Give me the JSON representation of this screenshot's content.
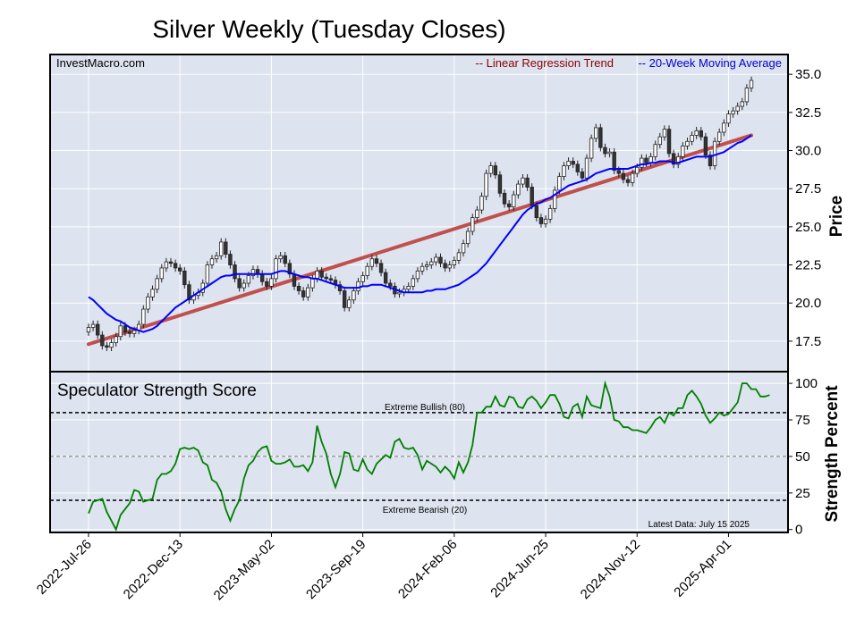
{
  "chart_data": [
    {
      "type": "candlestick",
      "title": "Silver Weekly (Tuesday Closes)",
      "source": "InvestMacro.com",
      "ylabel": "Price",
      "ylim": [
        15.5,
        36.3
      ],
      "yticks": [
        17.5,
        20.0,
        22.5,
        25.0,
        27.5,
        30.0,
        32.5,
        35.0
      ],
      "x_tick_labels": [
        "2022-Jul-26",
        "2022-Dec-13",
        "2023-May-02",
        "2023-Sep-19",
        "2024-Feb-06",
        "2024-Jun-25",
        "2024-Nov-12",
        "2025-Apr-01"
      ],
      "x_tick_positions": [
        0,
        20,
        40,
        60,
        80,
        100,
        120,
        140
      ],
      "legend": [
        "-- Linear Regression Trend",
        "-- 20-Week Moving Average"
      ],
      "legend_colors": [
        "#8b0000",
        "#0000cc"
      ],
      "trend_line": {
        "start": 17.3,
        "end": 31.0
      },
      "colors": {
        "trend": "#c0504d",
        "ma": "#0000ff",
        "candle_up": "#ffffff",
        "candle_down": "#333333",
        "panel_bg": "#dde3ef"
      },
      "closes": [
        18.4,
        18.6,
        17.9,
        17.2,
        17.1,
        17.4,
        17.8,
        18.5,
        18.1,
        18.0,
        18.2,
        18.6,
        19.6,
        20.4,
        20.9,
        21.6,
        22.3,
        22.7,
        22.6,
        22.3,
        22.1,
        21.2,
        20.2,
        20.5,
        20.7,
        21.3,
        22.5,
        22.9,
        23.1,
        24.0,
        23.2,
        22.5,
        21.6,
        21.0,
        21.3,
        21.8,
        22.2,
        21.9,
        21.4,
        21.1,
        21.6,
        22.9,
        23.1,
        22.6,
        21.9,
        21.1,
        20.8,
        20.4,
        21.0,
        21.6,
        22.1,
        21.7,
        21.6,
        21.5,
        21.2,
        20.8,
        19.7,
        20.2,
        20.8,
        21.4,
        21.8,
        22.4,
        22.9,
        22.6,
        22.0,
        21.3,
        21.1,
        20.6,
        20.7,
        20.9,
        21.1,
        21.6,
        22.1,
        22.4,
        22.5,
        22.7,
        23.0,
        22.6,
        22.3,
        22.5,
        22.8,
        23.3,
        23.9,
        24.7,
        25.6,
        26.1,
        27.0,
        28.5,
        29.0,
        28.4,
        27.2,
        26.5,
        26.3,
        27.1,
        27.8,
        28.2,
        27.6,
        26.4,
        25.6,
        25.2,
        25.5,
        26.2,
        27.4,
        28.3,
        29.0,
        29.3,
        29.1,
        28.6,
        28.2,
        29.5,
        30.8,
        31.5,
        30.2,
        29.8,
        29.9,
        28.7,
        28.5,
        28.1,
        27.9,
        28.5,
        28.9,
        29.5,
        29.2,
        29.6,
        30.4,
        30.9,
        31.4,
        29.8,
        29.1,
        29.6,
        30.3,
        30.6,
        31.0,
        31.3,
        30.9,
        29.7,
        29.0,
        30.6,
        31.2,
        31.8,
        32.4,
        32.6,
        32.9,
        33.2,
        34.1,
        34.6
      ],
      "ma20": [
        20.4,
        20.2,
        19.9,
        19.6,
        19.3,
        19.1,
        18.9,
        18.8,
        18.6,
        18.4,
        18.3,
        18.2,
        18.1,
        18.2,
        18.3,
        18.5,
        18.8,
        19.1,
        19.4,
        19.7,
        19.9,
        20.1,
        20.3,
        20.5,
        20.7,
        20.9,
        21.1,
        21.3,
        21.5,
        21.7,
        21.8,
        21.8,
        21.9,
        21.9,
        21.9,
        21.9,
        21.9,
        21.9,
        21.9,
        21.9,
        21.9,
        22.0,
        22.1,
        22.1,
        22.0,
        21.9,
        21.8,
        21.7,
        21.7,
        21.6,
        21.6,
        21.5,
        21.4,
        21.3,
        21.2,
        21.1,
        21.0,
        21.0,
        21.0,
        21.0,
        21.1,
        21.1,
        21.2,
        21.2,
        21.2,
        21.1,
        21.0,
        20.9,
        20.8,
        20.7,
        20.7,
        20.7,
        20.7,
        20.7,
        20.8,
        20.8,
        20.9,
        20.9,
        20.9,
        21.0,
        21.1,
        21.2,
        21.4,
        21.6,
        21.8,
        22.0,
        22.3,
        22.6,
        23.0,
        23.4,
        23.8,
        24.2,
        24.6,
        25.0,
        25.4,
        25.8,
        26.1,
        26.3,
        26.5,
        26.6,
        26.8,
        26.9,
        27.1,
        27.3,
        27.5,
        27.7,
        27.8,
        27.9,
        28.0,
        28.1,
        28.3,
        28.5,
        28.6,
        28.7,
        28.8,
        28.8,
        28.8,
        28.8,
        28.8,
        28.9,
        29.0,
        29.1,
        29.1,
        29.2,
        29.2,
        29.3,
        29.3,
        29.3,
        29.2,
        29.2,
        29.3,
        29.4,
        29.5,
        29.6,
        29.6,
        29.6,
        29.6,
        29.7,
        29.8,
        29.9,
        30.1,
        30.3,
        30.5,
        30.6,
        30.8,
        31.0
      ]
    },
    {
      "type": "line",
      "title": "Speculator Strength Score",
      "ylabel": "Strength Percent",
      "ylim": [
        -2,
        108
      ],
      "yticks": [
        0,
        25,
        50,
        75,
        100
      ],
      "reference_lines": [
        {
          "value": 80,
          "label": "Extreme Bullish (80)"
        },
        {
          "value": 50,
          "label": ""
        },
        {
          "value": 20,
          "label": "Extreme Bearish (20)"
        }
      ],
      "footnote": "Latest Data: July 15 2025",
      "colors": {
        "line": "#008000",
        "panel_bg": "#dde3ef"
      },
      "values": [
        11,
        19,
        20,
        21,
        12,
        6,
        0,
        10,
        14,
        18,
        27,
        26,
        19,
        20,
        21,
        34,
        38,
        38,
        40,
        45,
        55,
        56,
        55,
        56,
        54,
        46,
        44,
        34,
        32,
        26,
        14,
        6,
        14,
        20,
        35,
        44,
        47,
        53,
        56,
        57,
        47,
        45,
        45,
        46,
        48,
        43,
        43,
        44,
        40,
        46,
        71,
        60,
        52,
        38,
        29,
        38,
        53,
        52,
        41,
        40,
        48,
        41,
        38,
        45,
        48,
        51,
        49,
        60,
        62,
        56,
        55,
        56,
        51,
        41,
        47,
        45,
        43,
        39,
        43,
        40,
        35,
        46,
        39,
        46,
        58,
        80,
        80,
        84,
        84,
        91,
        85,
        84,
        91,
        90,
        84,
        83,
        89,
        91,
        88,
        83,
        87,
        92,
        92,
        86,
        77,
        76,
        84,
        86,
        77,
        91,
        85,
        84,
        83,
        100,
        91,
        75,
        74,
        70,
        70,
        68,
        68,
        67,
        66,
        70,
        75,
        77,
        73,
        80,
        78,
        83,
        83,
        92,
        95,
        91,
        86,
        78,
        73,
        76,
        80,
        78,
        79,
        83,
        87,
        100,
        100,
        96,
        96,
        91,
        91,
        92
      ]
    }
  ]
}
